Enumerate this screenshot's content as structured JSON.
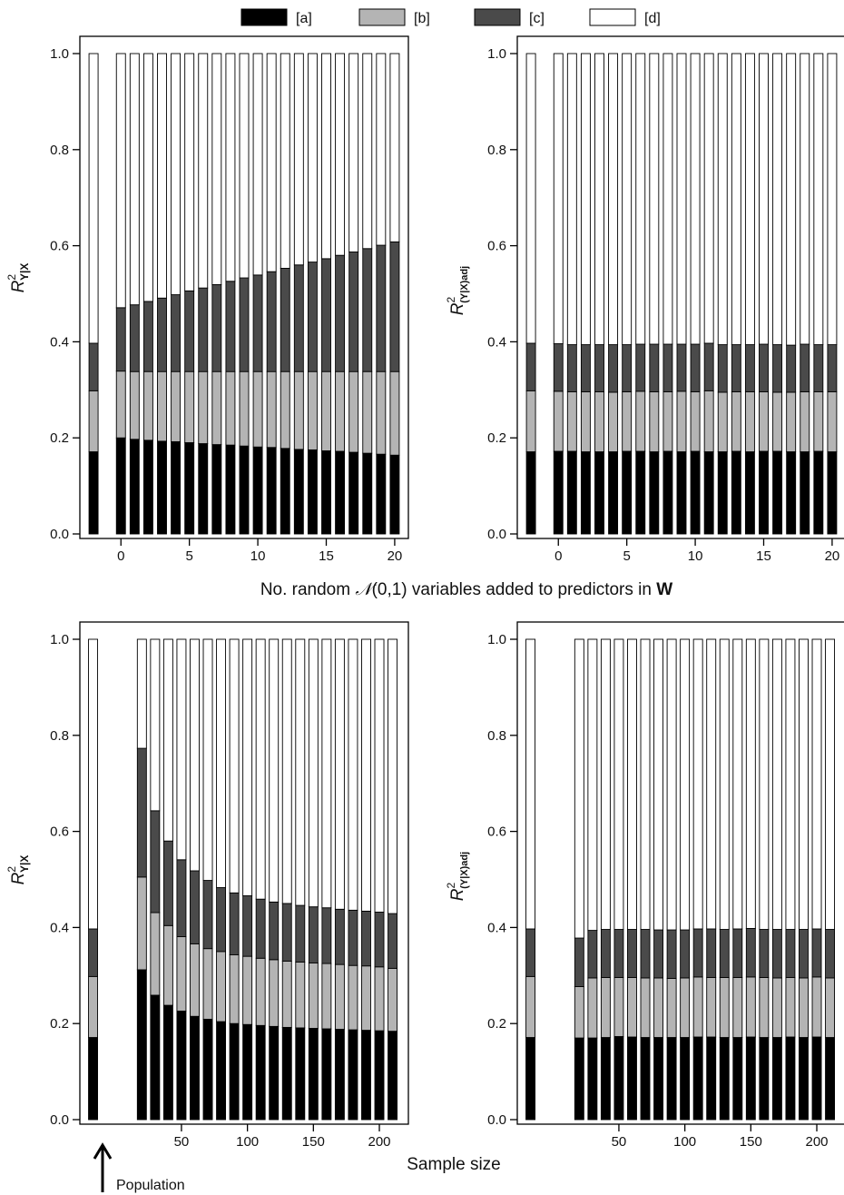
{
  "legend": [
    {
      "key": "a",
      "label": "[a]",
      "color": "#000000"
    },
    {
      "key": "b",
      "label": "[b]",
      "color": "#b4b4b4"
    },
    {
      "key": "c",
      "label": "[c]",
      "color": "#4a4a4a"
    },
    {
      "key": "d",
      "label": "[d]",
      "color": "#ffffff"
    }
  ],
  "xlabel_top": {
    "before": "No. random ",
    "script": "𝒩",
    "middle": "(0,1) variables added to predictors in ",
    "bold": "W"
  },
  "xlabel_bottom": "Sample size",
  "population_label": "Population",
  "ylabels": {
    "r2": {
      "base": "R",
      "sup": "2",
      "sub": "Y|X"
    },
    "r2adj": {
      "base": "R",
      "sup": "2",
      "sub": "(Y|X)adj"
    }
  },
  "chart_data": [
    {
      "type": "bar",
      "stacked": true,
      "ylabel": "R²Y|X",
      "ylim": [
        0,
        1
      ],
      "yticks": [
        "0.0",
        "0.2",
        "0.4",
        "0.6",
        "0.8",
        "1.0"
      ],
      "xlim": [
        -3,
        21
      ],
      "xticks": [
        0,
        5,
        10,
        15,
        20
      ],
      "population_x": -2,
      "x": [
        -2,
        0,
        1,
        2,
        3,
        4,
        5,
        6,
        7,
        8,
        9,
        10,
        11,
        12,
        13,
        14,
        15,
        16,
        17,
        18,
        19,
        20
      ],
      "series": [
        {
          "name": "[a]",
          "values": [
            0.171,
            0.2,
            0.197,
            0.195,
            0.193,
            0.192,
            0.19,
            0.188,
            0.186,
            0.185,
            0.183,
            0.181,
            0.18,
            0.178,
            0.176,
            0.175,
            0.173,
            0.172,
            0.17,
            0.168,
            0.166,
            0.164
          ]
        },
        {
          "name": "[b]",
          "values": [
            0.127,
            0.139,
            0.141,
            0.143,
            0.145,
            0.146,
            0.148,
            0.15,
            0.152,
            0.153,
            0.155,
            0.157,
            0.158,
            0.16,
            0.162,
            0.163,
            0.165,
            0.166,
            0.168,
            0.17,
            0.172,
            0.174
          ]
        },
        {
          "name": "[c]",
          "values": [
            0.099,
            0.132,
            0.139,
            0.146,
            0.153,
            0.16,
            0.168,
            0.174,
            0.181,
            0.188,
            0.195,
            0.201,
            0.208,
            0.215,
            0.222,
            0.228,
            0.235,
            0.242,
            0.249,
            0.256,
            0.263,
            0.27
          ]
        },
        {
          "name": "[d]",
          "values": [
            0.603,
            0.529,
            0.523,
            0.516,
            0.509,
            0.502,
            0.494,
            0.488,
            0.481,
            0.474,
            0.467,
            0.461,
            0.454,
            0.447,
            0.44,
            0.434,
            0.427,
            0.42,
            0.413,
            0.406,
            0.399,
            0.392
          ]
        }
      ]
    },
    {
      "type": "bar",
      "stacked": true,
      "ylabel": "R²(Y|X)adj",
      "ylim": [
        0,
        1
      ],
      "yticks": [
        "0.0",
        "0.2",
        "0.4",
        "0.6",
        "0.8",
        "1.0"
      ],
      "xlim": [
        -3,
        21
      ],
      "xticks": [
        0,
        5,
        10,
        15,
        20
      ],
      "population_x": -2,
      "x": [
        -2,
        0,
        1,
        2,
        3,
        4,
        5,
        6,
        7,
        8,
        9,
        10,
        11,
        12,
        13,
        14,
        15,
        16,
        17,
        18,
        19,
        20
      ],
      "series": [
        {
          "name": "[a]",
          "values": [
            0.171,
            0.172,
            0.172,
            0.171,
            0.171,
            0.171,
            0.172,
            0.172,
            0.171,
            0.172,
            0.171,
            0.172,
            0.171,
            0.171,
            0.172,
            0.171,
            0.172,
            0.172,
            0.171,
            0.171,
            0.172,
            0.171
          ]
        },
        {
          "name": "[b]",
          "values": [
            0.127,
            0.125,
            0.124,
            0.125,
            0.125,
            0.124,
            0.124,
            0.125,
            0.125,
            0.124,
            0.126,
            0.124,
            0.127,
            0.124,
            0.124,
            0.125,
            0.124,
            0.123,
            0.124,
            0.125,
            0.124,
            0.125
          ]
        },
        {
          "name": "[c]",
          "values": [
            0.099,
            0.099,
            0.098,
            0.098,
            0.098,
            0.099,
            0.098,
            0.098,
            0.099,
            0.099,
            0.098,
            0.099,
            0.099,
            0.099,
            0.098,
            0.098,
            0.099,
            0.099,
            0.098,
            0.099,
            0.098,
            0.098
          ]
        },
        {
          "name": "[d]",
          "values": [
            0.603,
            0.604,
            0.606,
            0.606,
            0.606,
            0.606,
            0.606,
            0.605,
            0.605,
            0.605,
            0.605,
            0.605,
            0.603,
            0.606,
            0.606,
            0.606,
            0.605,
            0.606,
            0.607,
            0.605,
            0.606,
            0.606
          ]
        }
      ]
    },
    {
      "type": "bar",
      "stacked": true,
      "ylabel": "R²Y|X",
      "ylim": [
        0,
        1
      ],
      "yticks": [
        "0.0",
        "0.2",
        "0.4",
        "0.6",
        "0.8",
        "1.0"
      ],
      "xlim": [
        -27,
        222
      ],
      "xticks": [
        50,
        100,
        150,
        200
      ],
      "population_x": -17,
      "x": [
        -17,
        20,
        30,
        40,
        50,
        60,
        70,
        80,
        90,
        100,
        110,
        120,
        130,
        140,
        150,
        160,
        170,
        180,
        190,
        200,
        210
      ],
      "series": [
        {
          "name": "[a]",
          "values": [
            0.171,
            0.312,
            0.259,
            0.238,
            0.226,
            0.215,
            0.209,
            0.204,
            0.2,
            0.198,
            0.196,
            0.194,
            0.192,
            0.191,
            0.19,
            0.189,
            0.188,
            0.187,
            0.186,
            0.185,
            0.184
          ]
        },
        {
          "name": "[b]",
          "values": [
            0.127,
            0.193,
            0.172,
            0.166,
            0.155,
            0.151,
            0.147,
            0.146,
            0.143,
            0.142,
            0.14,
            0.139,
            0.138,
            0.137,
            0.136,
            0.136,
            0.135,
            0.134,
            0.134,
            0.133,
            0.131
          ]
        },
        {
          "name": "[c]",
          "values": [
            0.099,
            0.268,
            0.212,
            0.176,
            0.16,
            0.152,
            0.142,
            0.133,
            0.129,
            0.126,
            0.123,
            0.12,
            0.12,
            0.118,
            0.117,
            0.116,
            0.115,
            0.115,
            0.114,
            0.114,
            0.114
          ]
        },
        {
          "name": "[d]",
          "values": [
            0.603,
            0.227,
            0.357,
            0.42,
            0.459,
            0.482,
            0.502,
            0.517,
            0.528,
            0.534,
            0.541,
            0.547,
            0.55,
            0.554,
            0.557,
            0.559,
            0.562,
            0.564,
            0.566,
            0.568,
            0.571
          ]
        }
      ]
    },
    {
      "type": "bar",
      "stacked": true,
      "ylabel": "R²(Y|X)adj",
      "ylim": [
        0,
        1
      ],
      "yticks": [
        "0.0",
        "0.2",
        "0.4",
        "0.6",
        "0.8",
        "1.0"
      ],
      "xlim": [
        -27,
        222
      ],
      "xticks": [
        50,
        100,
        150,
        200
      ],
      "population_x": -17,
      "x": [
        -17,
        20,
        30,
        40,
        50,
        60,
        70,
        80,
        90,
        100,
        110,
        120,
        130,
        140,
        150,
        160,
        170,
        180,
        190,
        200,
        210
      ],
      "series": [
        {
          "name": "[a]",
          "values": [
            0.171,
            0.17,
            0.17,
            0.171,
            0.173,
            0.172,
            0.171,
            0.171,
            0.171,
            0.171,
            0.172,
            0.172,
            0.171,
            0.171,
            0.172,
            0.171,
            0.171,
            0.172,
            0.171,
            0.172,
            0.171
          ]
        },
        {
          "name": "[b]",
          "values": [
            0.127,
            0.107,
            0.125,
            0.125,
            0.123,
            0.124,
            0.124,
            0.124,
            0.123,
            0.124,
            0.125,
            0.124,
            0.125,
            0.125,
            0.125,
            0.125,
            0.124,
            0.124,
            0.124,
            0.125,
            0.124
          ]
        },
        {
          "name": "[c]",
          "values": [
            0.099,
            0.101,
            0.099,
            0.1,
            0.1,
            0.1,
            0.101,
            0.1,
            0.101,
            0.1,
            0.1,
            0.101,
            0.1,
            0.101,
            0.101,
            0.1,
            0.101,
            0.1,
            0.101,
            0.1,
            0.101
          ]
        },
        {
          "name": "[d]",
          "values": [
            0.603,
            0.622,
            0.606,
            0.604,
            0.604,
            0.604,
            0.604,
            0.605,
            0.605,
            0.605,
            0.603,
            0.603,
            0.604,
            0.603,
            0.602,
            0.604,
            0.604,
            0.604,
            0.604,
            0.603,
            0.604
          ]
        }
      ]
    }
  ]
}
